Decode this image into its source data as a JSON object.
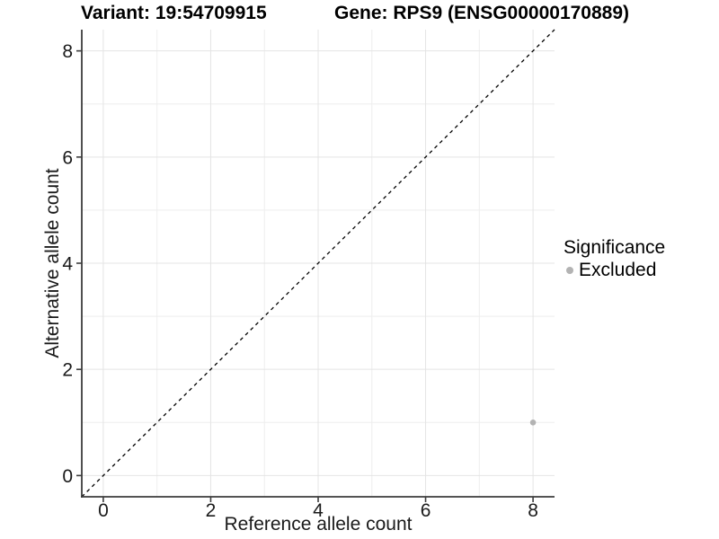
{
  "header": {
    "variant_title": "Variant: 19:54709915",
    "gene_title": "Gene: RPS9 (ENSG00000170889)"
  },
  "chart_data": {
    "type": "scatter",
    "titles": [
      "Variant: 19:54709915",
      "Gene: RPS9 (ENSG00000170889)"
    ],
    "xlabel": "Reference allele count",
    "ylabel": "Alternative allele count",
    "xlim": [
      -0.4,
      8.4
    ],
    "ylim": [
      -0.4,
      8.4
    ],
    "x_ticks": [
      0,
      2,
      4,
      6,
      8
    ],
    "y_ticks": [
      0,
      2,
      4,
      6,
      8
    ],
    "x_minor_gridlines": [
      1,
      3,
      5,
      7
    ],
    "y_minor_gridlines": [
      1,
      3,
      5,
      7
    ],
    "grid": true,
    "reference_line": {
      "type": "identity",
      "style": "dashed",
      "from": [
        -0.4,
        -0.4
      ],
      "to": [
        8.4,
        8.4
      ]
    },
    "series": [
      {
        "name": "Excluded",
        "color": "#b3b3b3",
        "points": [
          {
            "x": 8,
            "y": 1
          }
        ]
      }
    ],
    "legend": {
      "title": "Significance",
      "position": "right",
      "entries": [
        {
          "label": "Excluded",
          "color": "#b3b3b3"
        }
      ]
    },
    "colors": {
      "background": "#ffffff",
      "grid_major": "#e4e4e4",
      "grid_minor": "#eeeeee",
      "axis_line": "#3c3c3c",
      "reference_line": "#000000",
      "tick_text": "#1a1a1a"
    }
  }
}
